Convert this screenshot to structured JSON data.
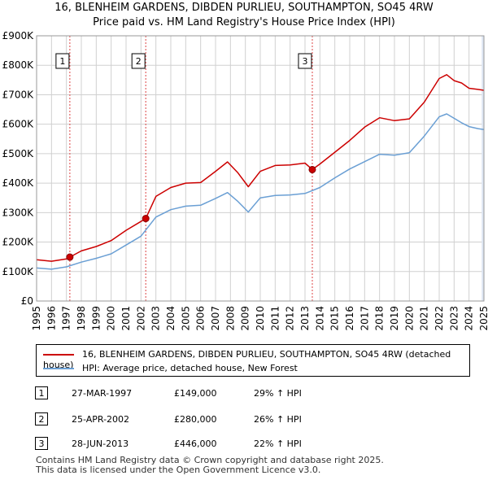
{
  "title_line1": "16, BLENHEIM GARDENS, DIBDEN PURLIEU, SOUTHAMPTON, SO45 4RW",
  "title_line2": "Price paid vs. HM Land Registry's House Price Index (HPI)",
  "colors": {
    "property": "#cc0000",
    "hpi": "#6a9fd4",
    "shade": "#dde6f3",
    "sale_line": "#dd4444"
  },
  "legend": {
    "property_label": "16, BLENHEIM GARDENS, DIBDEN PURLIEU, SOUTHAMPTON, SO45 4RW (detached house)",
    "hpi_label": "HPI: Average price, detached house, New Forest"
  },
  "sales": [
    {
      "num": "1",
      "date": "27-MAR-1997",
      "price": "£149,000",
      "hpi": "29% ↑ HPI"
    },
    {
      "num": "2",
      "date": "25-APR-2002",
      "price": "£280,000",
      "hpi": "26% ↑ HPI"
    },
    {
      "num": "3",
      "date": "28-JUN-2013",
      "price": "£446,000",
      "hpi": "22% ↑ HPI"
    }
  ],
  "footer": {
    "line1": "Contains HM Land Registry data © Crown copyright and database right 2025.",
    "line2": "This data is licensed under the Open Government Licence v3.0."
  },
  "chart_data": {
    "type": "line",
    "title": "Price paid vs. HM Land Registry's House Price Index (HPI)",
    "xlim": [
      1995,
      2025
    ],
    "ylim": [
      0,
      900000
    ],
    "x_ticks": [
      "1995",
      "1996",
      "1997",
      "1998",
      "1999",
      "2000",
      "2001",
      "2002",
      "2003",
      "2004",
      "2005",
      "2006",
      "2007",
      "2008",
      "2009",
      "2010",
      "2011",
      "2012",
      "2013",
      "2014",
      "2015",
      "2016",
      "2017",
      "2018",
      "2019",
      "2020",
      "2021",
      "2022",
      "2023",
      "2024",
      "2025"
    ],
    "y_ticks": [
      {
        "value": 0,
        "label": "£0"
      },
      {
        "value": 100000,
        "label": "£100K"
      },
      {
        "value": 200000,
        "label": "£200K"
      },
      {
        "value": 300000,
        "label": "£300K"
      },
      {
        "value": 400000,
        "label": "£400K"
      },
      {
        "value": 500000,
        "label": "£500K"
      },
      {
        "value": 600000,
        "label": "£600K"
      },
      {
        "value": 700000,
        "label": "£700K"
      },
      {
        "value": 800000,
        "label": "£800K"
      },
      {
        "value": 900000,
        "label": "£900K"
      }
    ],
    "sale_points": [
      {
        "label": "1",
        "x": 1997.23,
        "y": 149000
      },
      {
        "label": "2",
        "x": 2002.32,
        "y": 280000
      },
      {
        "label": "3",
        "x": 2013.49,
        "y": 446000
      }
    ],
    "series": [
      {
        "name": "16, BLENHEIM GARDENS, DIBDEN PURLIEU, SOUTHAMPTON, SO45 4RW (detached house)",
        "x": [
          1995,
          1996,
          1997,
          1997.23,
          1998,
          1999,
          2000,
          2001,
          2002,
          2002.32,
          2003,
          2004,
          2005,
          2006,
          2007,
          2007.8,
          2008.5,
          2009.2,
          2010,
          2011,
          2012,
          2013,
          2013.49,
          2014,
          2015,
          2016,
          2017,
          2018,
          2019,
          2020,
          2021,
          2022,
          2022.5,
          2023,
          2023.5,
          2024,
          2024.6,
          2025
        ],
        "y": [
          140000,
          135000,
          143000,
          149000,
          170000,
          185000,
          205000,
          240000,
          270000,
          280000,
          355000,
          385000,
          400000,
          402000,
          440000,
          472000,
          435000,
          388000,
          440000,
          460000,
          462000,
          468000,
          446000,
          465000,
          505000,
          545000,
          590000,
          622000,
          612000,
          618000,
          675000,
          755000,
          768000,
          748000,
          740000,
          722000,
          718000,
          715000
        ]
      },
      {
        "name": "HPI: Average price, detached house, New Forest",
        "x": [
          1995,
          1996,
          1997,
          1998,
          1999,
          2000,
          2001,
          2002,
          2003,
          2004,
          2005,
          2006,
          2007,
          2007.8,
          2008.5,
          2009.2,
          2010,
          2011,
          2012,
          2013,
          2014,
          2015,
          2016,
          2017,
          2018,
          2019,
          2020,
          2021,
          2022,
          2022.5,
          2023,
          2023.5,
          2024,
          2024.6,
          2025
        ],
        "y": [
          112000,
          108000,
          116000,
          132000,
          145000,
          160000,
          190000,
          220000,
          285000,
          310000,
          322000,
          325000,
          348000,
          368000,
          338000,
          302000,
          350000,
          358000,
          360000,
          365000,
          385000,
          418000,
          448000,
          473000,
          498000,
          495000,
          503000,
          560000,
          625000,
          635000,
          620000,
          605000,
          592000,
          585000,
          582000
        ]
      }
    ]
  }
}
